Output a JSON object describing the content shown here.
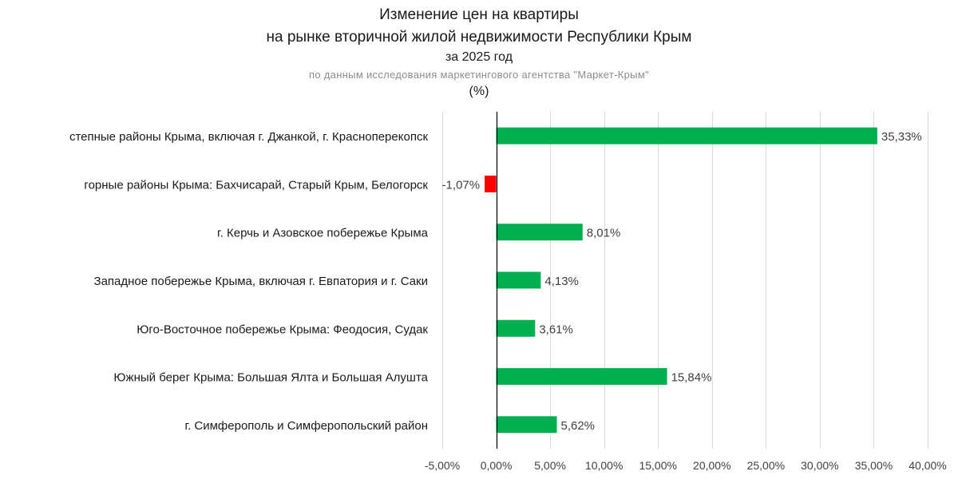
{
  "chart_data": {
    "type": "bar",
    "orientation": "horizontal",
    "title_lines": [
      "Изменение цен на квартиры",
      "на рынке вторичной жилой недвижимости Республики Крым"
    ],
    "subtitle": "за 2025 год",
    "source_note": "по данным исследования маркетингового агентства \"Маркет-Крым\"",
    "unit_label": "(%)",
    "categories": [
      "степные районы Крыма, включая г. Джанкой, г. Красноперекопск",
      "горные районы Крыма: Бахчисарай, Старый Крым, Белогорск",
      "г. Керчь и Азовское побережье Крыма",
      "Западное побережье Крыма, включая г. Евпатория и г. Саки",
      "Юго-Восточное побережье Крыма: Феодосия, Судак",
      "Южный берег Крыма: Большая Ялта и Большая Алушта",
      "г. Симферополь и Симферопольский район"
    ],
    "values": [
      35.33,
      -1.07,
      8.01,
      4.13,
      3.61,
      15.84,
      5.62
    ],
    "value_labels": [
      "35,33%",
      "-1,07%",
      "8,01%",
      "4,13%",
      "3,61%",
      "15,84%",
      "5,62%"
    ],
    "xlim": [
      -5,
      40
    ],
    "xticks": [
      -5,
      0,
      5,
      10,
      15,
      20,
      25,
      30,
      35,
      40
    ],
    "xtick_labels": [
      "-5,00%",
      "0,00%",
      "5,00%",
      "10,00%",
      "15,00%",
      "20,00%",
      "25,00%",
      "30,00%",
      "35,00%",
      "40,00%"
    ],
    "grid": true,
    "colors": {
      "positive": "#00b050",
      "negative": "#ff0000",
      "grid": "#d9d9d9",
      "axis": "#000000",
      "text": "#404040"
    }
  }
}
